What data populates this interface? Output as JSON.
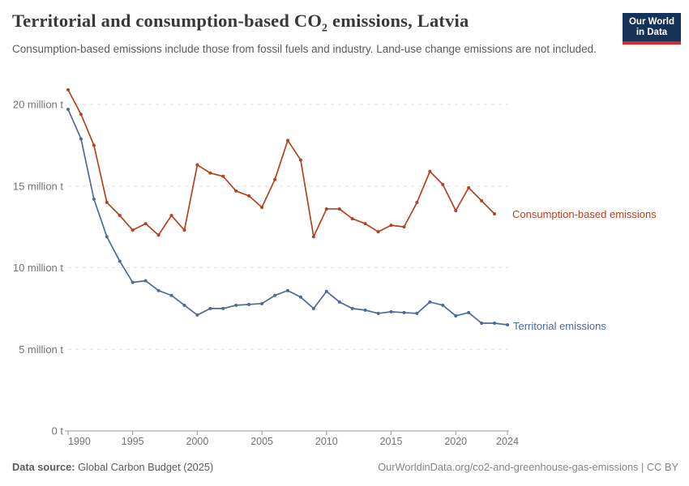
{
  "header": {
    "title_prefix": "Territorial and consumption-based CO",
    "title_sub": "2",
    "title_suffix": " emissions, Latvia",
    "subtitle": "Consumption-based emissions include those from fossil fuels and industry. Land-use change emissions are not included.",
    "logo": {
      "line1": "Our World",
      "line2": "in Data",
      "bg_color": "#163357",
      "accent_color": "#E0262C"
    }
  },
  "chart_data": {
    "type": "line",
    "x": [
      1990,
      1991,
      1992,
      1993,
      1994,
      1995,
      1996,
      1997,
      1998,
      1999,
      2000,
      2001,
      2002,
      2003,
      2004,
      2005,
      2006,
      2007,
      2008,
      2009,
      2010,
      2011,
      2012,
      2013,
      2014,
      2015,
      2016,
      2017,
      2018,
      2019,
      2020,
      2021,
      2022,
      2023,
      2024
    ],
    "series": [
      {
        "name": "Territorial emissions",
        "color": "#4C6A9C",
        "values": [
          19.7,
          17.9,
          14.2,
          11.9,
          10.4,
          9.1,
          9.2,
          8.6,
          8.3,
          7.7,
          7.1,
          7.5,
          7.5,
          7.7,
          7.75,
          7.8,
          8.3,
          8.6,
          8.2,
          7.5,
          8.55,
          7.9,
          7.5,
          7.4,
          7.2,
          7.3,
          7.25,
          7.2,
          7.9,
          7.7,
          7.05,
          7.25,
          6.6,
          6.6,
          6.5
        ]
      },
      {
        "name": "Consumption-based emissions",
        "color": "#B5421D",
        "values": [
          20.9,
          19.4,
          17.5,
          14.0,
          13.2,
          12.3,
          12.7,
          12.0,
          13.2,
          12.3,
          16.3,
          15.8,
          15.6,
          14.7,
          14.4,
          13.7,
          15.4,
          17.8,
          16.6,
          11.9,
          13.6,
          13.6,
          13.0,
          12.7,
          12.2,
          12.6,
          12.5,
          14.0,
          15.9,
          15.1,
          13.5,
          14.9,
          14.1,
          13.3,
          null
        ]
      }
    ],
    "x_ticks": [
      1990,
      1995,
      2000,
      2005,
      2010,
      2015,
      2020,
      2024
    ],
    "y_ticks": [
      {
        "value": 0,
        "label": "0 t"
      },
      {
        "value": 5,
        "label": "5 million t"
      },
      {
        "value": 10,
        "label": "10 million t"
      },
      {
        "value": 15,
        "label": "15 million t"
      },
      {
        "value": 20,
        "label": "20 million t"
      }
    ],
    "xlim": [
      1990,
      2024
    ],
    "ylim": [
      0,
      21.5
    ],
    "grid": "horizontal-dashed",
    "legend_position": "line-end-labels",
    "title": "Territorial and consumption-based CO2 emissions, Latvia",
    "xlabel": "",
    "ylabel": ""
  },
  "footer": {
    "source_label": "Data source:",
    "source_value": " Global Carbon Budget (2025)",
    "url": "OurWorldinData.org/co2-and-greenhouse-gas-emissions",
    "license": " | CC BY"
  }
}
